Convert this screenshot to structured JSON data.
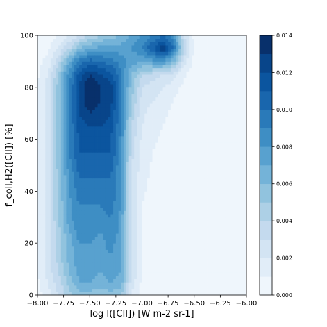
{
  "chart_data": {
    "type": "contour",
    "xlabel": "log I([CII]) [W m-2 sr-1]",
    "ylabel": "f_coll,H2([CII]) [%]",
    "xlim": [
      -8,
      -6
    ],
    "ylim": [
      0,
      100
    ],
    "xticks": [
      {
        "value": -8,
        "label": "−8.00"
      },
      {
        "value": -7.75,
        "label": "−7.75"
      },
      {
        "value": -7.5,
        "label": "−7.50"
      },
      {
        "value": -7.25,
        "label": "−7.25"
      },
      {
        "value": -7,
        "label": "−7.00"
      },
      {
        "value": -6.75,
        "label": "−6.75"
      },
      {
        "value": -6.5,
        "label": "−6.50"
      },
      {
        "value": -6.25,
        "label": "−6.25"
      },
      {
        "value": -6,
        "label": "−6.00"
      }
    ],
    "yticks": [
      0,
      20,
      40,
      60,
      80,
      100
    ],
    "levels": [
      0,
      0.001,
      0.002,
      0.003,
      0.004,
      0.005,
      0.006,
      0.007,
      0.008,
      0.009,
      0.01,
      0.011,
      0.012,
      0.013,
      0.014
    ],
    "colors": [
      "#eff6fc",
      "#e1edf8",
      "#d3e4f3",
      "#c4daee",
      "#add0e6",
      "#91c3de",
      "#74b3d8",
      "#58a1cf",
      "#3e8ec4",
      "#2a7ab9",
      "#1966ad",
      "#0b559f",
      "#08458a",
      "#08306b"
    ],
    "colorbar_ticks": [
      {
        "value": 0,
        "label": "0.000"
      },
      0.002,
      0.004,
      0.006,
      0.008,
      {
        "value": 0.01,
        "label": "0.010"
      },
      0.012,
      0.014
    ],
    "x": [
      -8,
      -7.9,
      -7.8,
      -7.7,
      -7.6,
      -7.5,
      -7.4,
      -7.3,
      -7.2,
      -7.1,
      -7,
      -6.9,
      -6.8,
      -6.7,
      -6.6,
      -6.5,
      -6.4,
      -6.3,
      -6.2,
      -6.1,
      -6
    ],
    "y": [
      0,
      5,
      10,
      15,
      20,
      25,
      30,
      35,
      40,
      45,
      50,
      55,
      60,
      65,
      70,
      75,
      80,
      85,
      90,
      95,
      100
    ],
    "z": [
      [
        0.0005,
        0.0015,
        0.003,
        0.0045,
        0.0055,
        0.0055,
        0.005,
        0.0055,
        0.005,
        0.002,
        0.0005,
        0.0003,
        0.0002,
        0.0002,
        0.0001,
        0.0001,
        0.0001,
        0.0001,
        0.0001,
        0.0001,
        0.0001
      ],
      [
        0.0008,
        0.002,
        0.0035,
        0.0055,
        0.007,
        0.007,
        0.0065,
        0.007,
        0.0065,
        0.0025,
        0.0008,
        0.0003,
        0.0002,
        0.0002,
        0.0001,
        0.0001,
        0.0001,
        0.0001,
        0.0001,
        0.0001,
        0.0001
      ],
      [
        0.001,
        0.0025,
        0.004,
        0.006,
        0.0075,
        0.0075,
        0.007,
        0.008,
        0.007,
        0.003,
        0.001,
        0.0004,
        0.0003,
        0.0002,
        0.0002,
        0.0001,
        0.0001,
        0.0001,
        0.0001,
        0.0001,
        0.0001
      ],
      [
        0.001,
        0.0025,
        0.0045,
        0.0065,
        0.0075,
        0.008,
        0.0075,
        0.008,
        0.007,
        0.003,
        0.001,
        0.0005,
        0.0003,
        0.0002,
        0.0002,
        0.0001,
        0.0001,
        0.0001,
        0.0001,
        0.0001,
        0.0001
      ],
      [
        0.001,
        0.0025,
        0.0045,
        0.0065,
        0.008,
        0.008,
        0.0075,
        0.0085,
        0.007,
        0.003,
        0.001,
        0.0005,
        0.0003,
        0.0002,
        0.0002,
        0.0001,
        0.0001,
        0.0001,
        0.0001,
        0.0001,
        0.0001
      ],
      [
        0.001,
        0.0025,
        0.0045,
        0.007,
        0.0085,
        0.0085,
        0.008,
        0.009,
        0.0075,
        0.003,
        0.001,
        0.0005,
        0.0003,
        0.0002,
        0.0002,
        0.0001,
        0.0001,
        0.0001,
        0.0001,
        0.0001,
        0.0001
      ],
      [
        0.001,
        0.0025,
        0.005,
        0.0075,
        0.009,
        0.0085,
        0.0085,
        0.009,
        0.0075,
        0.003,
        0.001,
        0.0005,
        0.0004,
        0.0003,
        0.0002,
        0.0001,
        0.0001,
        0.0001,
        0.0001,
        0.0001,
        0.0001
      ],
      [
        0.001,
        0.0025,
        0.005,
        0.0075,
        0.009,
        0.009,
        0.009,
        0.0095,
        0.008,
        0.003,
        0.001,
        0.0006,
        0.0004,
        0.0003,
        0.0002,
        0.0001,
        0.0001,
        0.0001,
        0.0001,
        0.0001,
        0.0001
      ],
      [
        0.001,
        0.0025,
        0.005,
        0.008,
        0.0095,
        0.0095,
        0.0095,
        0.01,
        0.008,
        0.003,
        0.0012,
        0.0007,
        0.0005,
        0.0003,
        0.0002,
        0.0001,
        0.0001,
        0.0001,
        0.0001,
        0.0001,
        0.0001
      ],
      [
        0.001,
        0.0025,
        0.005,
        0.008,
        0.01,
        0.01,
        0.01,
        0.01,
        0.008,
        0.003,
        0.0013,
        0.0008,
        0.0005,
        0.0003,
        0.0002,
        0.0001,
        0.0001,
        0.0001,
        0.0001,
        0.0001,
        0.0001
      ],
      [
        0.001,
        0.0025,
        0.0055,
        0.0085,
        0.0105,
        0.0105,
        0.0105,
        0.0105,
        0.008,
        0.003,
        0.0015,
        0.0009,
        0.0006,
        0.0004,
        0.0002,
        0.0001,
        0.0001,
        0.0001,
        0.0001,
        0.0001,
        0.0001
      ],
      [
        0.001,
        0.0025,
        0.0055,
        0.009,
        0.011,
        0.011,
        0.011,
        0.011,
        0.0085,
        0.0035,
        0.0015,
        0.001,
        0.0007,
        0.0004,
        0.0002,
        0.0001,
        0.0001,
        0.0001,
        0.0001,
        0.0001,
        0.0001
      ],
      [
        0.001,
        0.0025,
        0.0055,
        0.009,
        0.011,
        0.0115,
        0.0115,
        0.011,
        0.0085,
        0.0035,
        0.0018,
        0.0012,
        0.0008,
        0.0005,
        0.0003,
        0.0001,
        0.0001,
        0.0001,
        0.0001,
        0.0001,
        0.0001
      ],
      [
        0.001,
        0.0025,
        0.0055,
        0.009,
        0.0115,
        0.012,
        0.012,
        0.0115,
        0.009,
        0.004,
        0.002,
        0.0014,
        0.001,
        0.0006,
        0.0003,
        0.0001,
        0.0001,
        0.0001,
        0.0001,
        0.0001,
        0.0001
      ],
      [
        0.001,
        0.0025,
        0.0055,
        0.009,
        0.012,
        0.013,
        0.0125,
        0.012,
        0.009,
        0.0045,
        0.0022,
        0.0016,
        0.0012,
        0.0008,
        0.0004,
        0.0002,
        0.0001,
        0.0001,
        0.0001,
        0.0001,
        0.0001
      ],
      [
        0.001,
        0.0025,
        0.0055,
        0.009,
        0.012,
        0.014,
        0.013,
        0.0125,
        0.0095,
        0.005,
        0.0025,
        0.002,
        0.0015,
        0.001,
        0.0005,
        0.0002,
        0.0001,
        0.0001,
        0.0001,
        0.0001,
        0.0001
      ],
      [
        0.001,
        0.0025,
        0.0055,
        0.009,
        0.012,
        0.0142,
        0.013,
        0.0125,
        0.0095,
        0.0055,
        0.003,
        0.0025,
        0.002,
        0.0015,
        0.0007,
        0.0002,
        0.0001,
        0.0001,
        0.0001,
        0.0001,
        0.0001
      ],
      [
        0.0008,
        0.002,
        0.005,
        0.0085,
        0.0115,
        0.013,
        0.012,
        0.0115,
        0.009,
        0.006,
        0.004,
        0.0035,
        0.003,
        0.0025,
        0.0012,
        0.0003,
        0.0001,
        0.0001,
        0.0001,
        0.0001,
        0.0001
      ],
      [
        0.0005,
        0.0015,
        0.0035,
        0.007,
        0.0095,
        0.0105,
        0.01,
        0.0095,
        0.0085,
        0.0075,
        0.007,
        0.0075,
        0.008,
        0.006,
        0.0025,
        0.0005,
        0.0001,
        0.0001,
        0.0001,
        0.0001,
        0.0001
      ],
      [
        0.0003,
        0.0008,
        0.002,
        0.004,
        0.006,
        0.007,
        0.0075,
        0.0075,
        0.0075,
        0.008,
        0.009,
        0.011,
        0.013,
        0.01,
        0.004,
        0.0008,
        0.0001,
        0.0001,
        0.0001,
        0.0001,
        0.0001
      ],
      [
        0.0002,
        0.0005,
        0.001,
        0.002,
        0.003,
        0.004,
        0.005,
        0.0055,
        0.006,
        0.007,
        0.008,
        0.009,
        0.01,
        0.008,
        0.003,
        0.0006,
        0.0001,
        0.0001,
        0.0001,
        0.0001,
        0.0001
      ]
    ]
  }
}
